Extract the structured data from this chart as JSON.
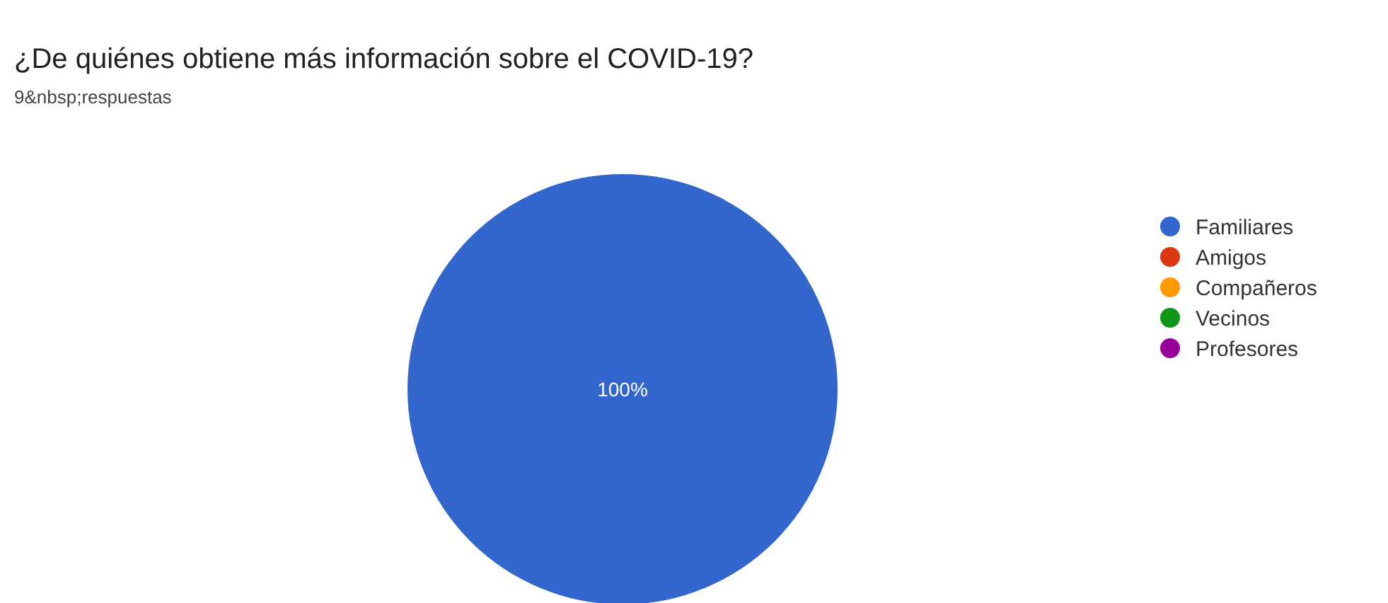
{
  "chart_data": {
    "type": "pie",
    "title": "¿De quiénes obtiene más información sobre el COVID-19?",
    "subtitle": "9&nbsp;respuestas",
    "categories": [
      "Familiares",
      "Amigos",
      "Compañeros",
      "Vecinos",
      "Profesores"
    ],
    "values": [
      100,
      0,
      0,
      0,
      0
    ],
    "colors": [
      "#3366cc",
      "#dc3912",
      "#ff9900",
      "#109618",
      "#990099"
    ],
    "value_labels": [
      "100%",
      null,
      null,
      null,
      null
    ],
    "legend": "top right"
  }
}
